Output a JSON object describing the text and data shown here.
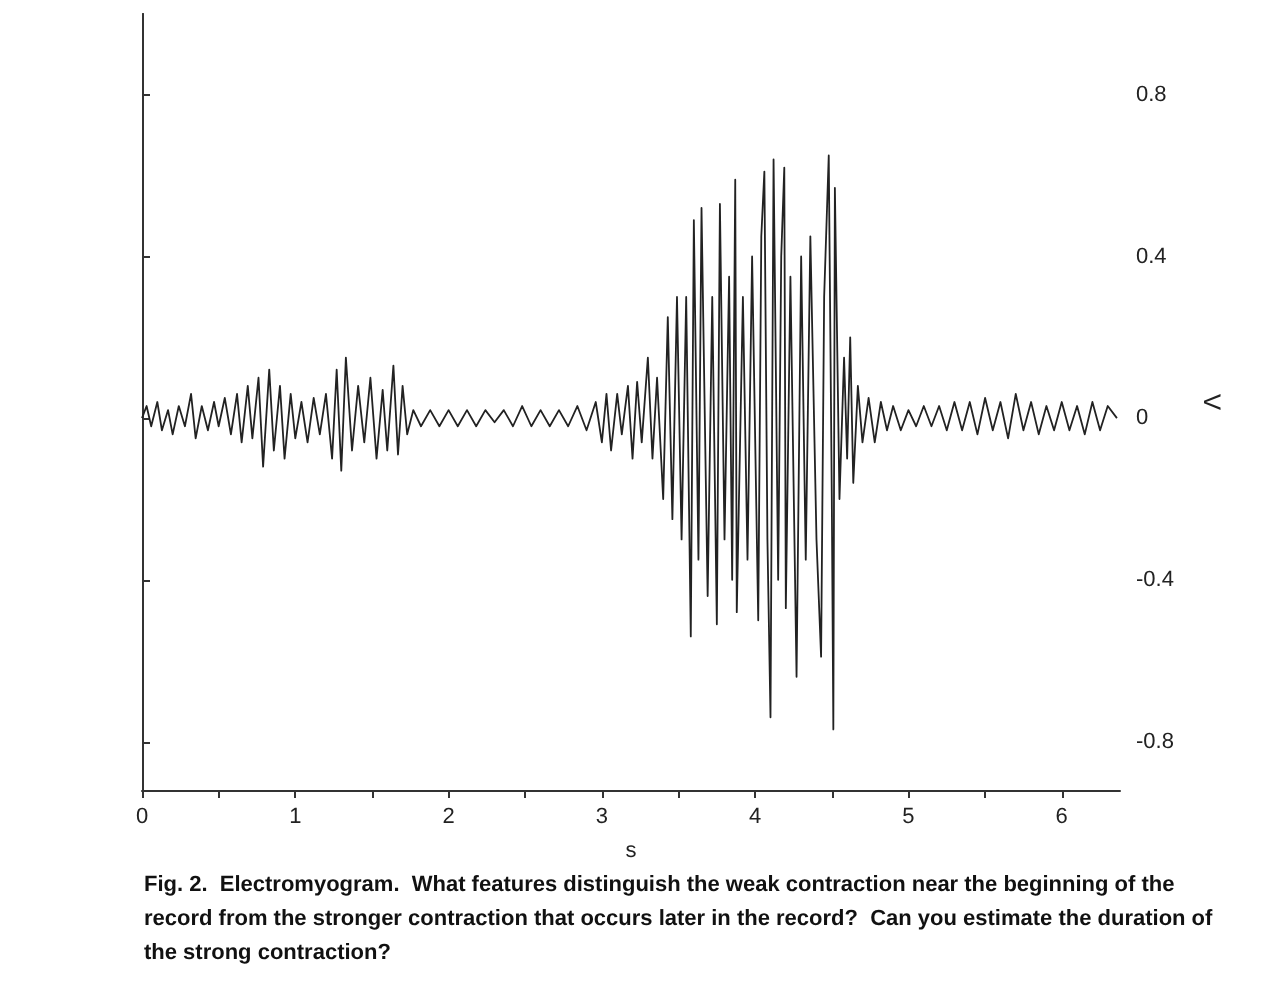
{
  "chart_data": {
    "type": "line",
    "xlabel": "s",
    "ylabel": "V",
    "annotations": [
      "Fig. 2.  Electromyogram.  What features distinguish the weak contraction near the beginning of the record from the stronger contraction that occurs later in the record?  Can you estimate the duration of the strong contraction?"
    ],
    "xlim": [
      0,
      6.38
    ],
    "ylim": [
      -0.92,
      1.0
    ],
    "xticks": [
      0,
      {
        "value": 0.5,
        "label": null
      },
      1,
      {
        "value": 1.5,
        "label": null
      },
      2,
      {
        "value": 2.5,
        "label": null
      },
      3,
      {
        "value": 3.5,
        "label": null
      },
      4,
      {
        "value": 4.5,
        "label": null
      },
      5,
      {
        "value": 5.5,
        "label": null
      },
      6
    ],
    "yticks": [
      -0.8,
      -0.4,
      0,
      0.4,
      0.8
    ],
    "marker": "none",
    "line_style": "solid",
    "series": [
      {
        "color": "#222222",
        "x": [
          0.0,
          0.03,
          0.06,
          0.1,
          0.13,
          0.17,
          0.2,
          0.24,
          0.28,
          0.32,
          0.35,
          0.39,
          0.43,
          0.47,
          0.5,
          0.54,
          0.58,
          0.62,
          0.65,
          0.69,
          0.72,
          0.76,
          0.79,
          0.83,
          0.86,
          0.9,
          0.93,
          0.97,
          1.0,
          1.04,
          1.08,
          1.12,
          1.16,
          1.2,
          1.24,
          1.27,
          1.3,
          1.33,
          1.37,
          1.41,
          1.45,
          1.49,
          1.53,
          1.57,
          1.6,
          1.64,
          1.67,
          1.7,
          1.73,
          1.77,
          1.82,
          1.88,
          1.94,
          2.0,
          2.06,
          2.12,
          2.18,
          2.24,
          2.3,
          2.36,
          2.42,
          2.48,
          2.54,
          2.6,
          2.66,
          2.72,
          2.78,
          2.84,
          2.9,
          2.96,
          3.0,
          3.03,
          3.06,
          3.1,
          3.13,
          3.17,
          3.2,
          3.23,
          3.26,
          3.3,
          3.33,
          3.36,
          3.4,
          3.43,
          3.46,
          3.49,
          3.52,
          3.55,
          3.58,
          3.6,
          3.63,
          3.65,
          3.69,
          3.72,
          3.75,
          3.77,
          3.8,
          3.83,
          3.85,
          3.87,
          3.88,
          3.92,
          3.95,
          3.98,
          4.02,
          4.04,
          4.06,
          4.08,
          4.1,
          4.12,
          4.15,
          4.17,
          4.19,
          4.2,
          4.23,
          4.27,
          4.3,
          4.33,
          4.36,
          4.4,
          4.43,
          4.45,
          4.48,
          4.5,
          4.51,
          4.52,
          4.55,
          4.58,
          4.6,
          4.62,
          4.64,
          4.67,
          4.7,
          4.74,
          4.78,
          4.82,
          4.86,
          4.9,
          4.95,
          5.0,
          5.05,
          5.1,
          5.15,
          5.2,
          5.25,
          5.3,
          5.35,
          5.4,
          5.45,
          5.5,
          5.55,
          5.6,
          5.65,
          5.7,
          5.75,
          5.8,
          5.85,
          5.9,
          5.95,
          6.0,
          6.05,
          6.1,
          6.15,
          6.2,
          6.25,
          6.3,
          6.36
        ],
        "values": [
          0.0,
          0.03,
          -0.02,
          0.04,
          -0.03,
          0.02,
          -0.04,
          0.03,
          -0.02,
          0.06,
          -0.05,
          0.03,
          -0.03,
          0.04,
          -0.02,
          0.05,
          -0.04,
          0.06,
          -0.06,
          0.08,
          -0.05,
          0.1,
          -0.12,
          0.12,
          -0.08,
          0.08,
          -0.1,
          0.06,
          -0.05,
          0.04,
          -0.06,
          0.05,
          -0.04,
          0.06,
          -0.1,
          0.12,
          -0.13,
          0.15,
          -0.08,
          0.08,
          -0.06,
          0.1,
          -0.1,
          0.07,
          -0.08,
          0.13,
          -0.09,
          0.08,
          -0.04,
          0.02,
          -0.02,
          0.02,
          -0.02,
          0.02,
          -0.02,
          0.02,
          -0.02,
          0.02,
          -0.01,
          0.02,
          -0.02,
          0.03,
          -0.02,
          0.02,
          -0.02,
          0.02,
          -0.02,
          0.03,
          -0.03,
          0.04,
          -0.06,
          0.06,
          -0.08,
          0.06,
          -0.04,
          0.08,
          -0.1,
          0.09,
          -0.06,
          0.15,
          -0.1,
          0.1,
          -0.2,
          0.25,
          -0.25,
          0.3,
          -0.3,
          0.3,
          -0.54,
          0.49,
          -0.35,
          0.52,
          -0.44,
          0.3,
          -0.51,
          0.53,
          -0.3,
          0.35,
          -0.4,
          0.59,
          -0.48,
          0.3,
          -0.35,
          0.4,
          -0.5,
          0.45,
          0.61,
          -0.3,
          -0.74,
          0.64,
          -0.4,
          0.4,
          0.62,
          -0.47,
          0.35,
          -0.64,
          0.4,
          -0.35,
          0.45,
          -0.3,
          -0.59,
          0.3,
          0.65,
          -0.2,
          -0.77,
          0.57,
          -0.2,
          0.15,
          -0.1,
          0.2,
          -0.16,
          0.08,
          -0.06,
          0.05,
          -0.06,
          0.04,
          -0.03,
          0.03,
          -0.03,
          0.02,
          -0.02,
          0.03,
          -0.02,
          0.03,
          -0.03,
          0.04,
          -0.03,
          0.04,
          -0.04,
          0.05,
          -0.03,
          0.04,
          -0.05,
          0.06,
          -0.03,
          0.04,
          -0.04,
          0.03,
          -0.03,
          0.04,
          -0.03,
          0.03,
          -0.04,
          0.04,
          -0.03,
          0.03,
          0.0
        ]
      }
    ]
  }
}
